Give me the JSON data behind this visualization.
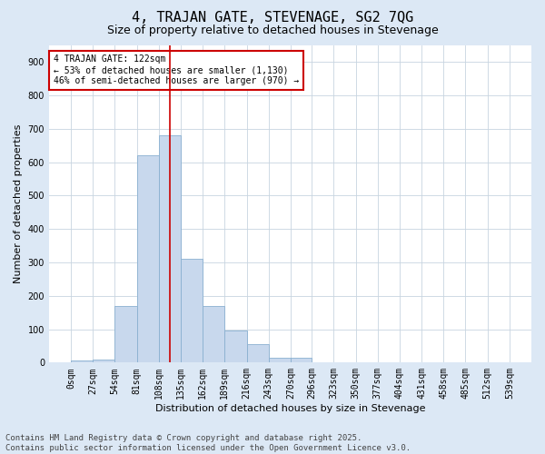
{
  "title": "4, TRAJAN GATE, STEVENAGE, SG2 7QG",
  "subtitle": "Size of property relative to detached houses in Stevenage",
  "xlabel": "Distribution of detached houses by size in Stevenage",
  "ylabel": "Number of detached properties",
  "bin_edges": [
    0,
    27,
    54,
    81,
    108,
    135,
    162,
    189,
    216,
    243,
    270,
    296,
    323,
    350,
    377,
    404,
    431,
    458,
    485,
    512,
    539
  ],
  "bar_heights": [
    5,
    10,
    170,
    620,
    680,
    310,
    170,
    95,
    55,
    15,
    15,
    0,
    0,
    0,
    0,
    0,
    0,
    0,
    0,
    0
  ],
  "bar_color": "#c8d8ed",
  "bar_edge_color": "#8ab0d0",
  "red_line_x": 122,
  "ylim": [
    0,
    950
  ],
  "yticks": [
    0,
    100,
    200,
    300,
    400,
    500,
    600,
    700,
    800,
    900
  ],
  "annotation_title": "4 TRAJAN GATE: 122sqm",
  "annotation_line1": "← 53% of detached houses are smaller (1,130)",
  "annotation_line2": "46% of semi-detached houses are larger (970) →",
  "annotation_box_color": "#cc0000",
  "footer_line1": "Contains HM Land Registry data © Crown copyright and database right 2025.",
  "footer_line2": "Contains public sector information licensed under the Open Government Licence v3.0.",
  "fig_background_color": "#dce8f5",
  "plot_background": "#ffffff",
  "grid_color": "#c8d4e0",
  "title_fontsize": 11,
  "subtitle_fontsize": 9,
  "axis_label_fontsize": 8,
  "tick_fontsize": 7,
  "annotation_fontsize": 7,
  "footer_fontsize": 6.5
}
